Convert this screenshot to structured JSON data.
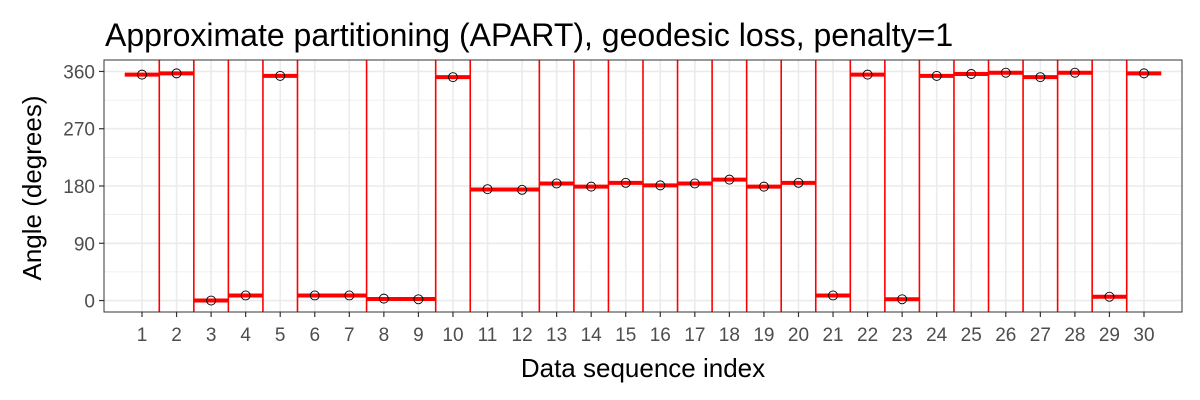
{
  "chart_data": {
    "type": "scatter",
    "title": "Approximate partitioning (APART), geodesic loss, penalty=1",
    "xlabel": "Data sequence index",
    "ylabel": "Angle (degrees)",
    "x_ticks": [
      "1",
      "2",
      "3",
      "4",
      "5",
      "6",
      "7",
      "8",
      "9",
      "10",
      "11",
      "12",
      "13",
      "14",
      "15",
      "16",
      "17",
      "18",
      "19",
      "20",
      "21",
      "22",
      "23",
      "24",
      "25",
      "26",
      "27",
      "28",
      "29",
      "30"
    ],
    "y_ticks": [
      "0",
      "90",
      "180",
      "270",
      "360"
    ],
    "xlim": [
      -0.1,
      31.1
    ],
    "ylim": [
      -18,
      378
    ],
    "grid": true,
    "colors": {
      "segment": "#ff0000",
      "point": "#000000",
      "grid": "#ebebeb",
      "panel_border": "#333333"
    },
    "points": {
      "x": [
        1,
        2,
        3,
        4,
        5,
        6,
        7,
        8,
        9,
        10,
        11,
        12,
        13,
        14,
        15,
        16,
        17,
        18,
        19,
        20,
        21,
        22,
        23,
        24,
        25,
        26,
        27,
        28,
        29,
        30
      ],
      "y": [
        355,
        357,
        0,
        8,
        353,
        8,
        8,
        3,
        2,
        351,
        175,
        174,
        184,
        179,
        185,
        181,
        184,
        190,
        179,
        185,
        8,
        355,
        2,
        353,
        356,
        358,
        351,
        358,
        6,
        357
      ]
    },
    "segments": [
      {
        "start": 0.5,
        "end": 1.5,
        "value": 355
      },
      {
        "start": 1.5,
        "end": 2.5,
        "value": 357
      },
      {
        "start": 2.5,
        "end": 3.5,
        "value": 0
      },
      {
        "start": 3.5,
        "end": 4.5,
        "value": 8
      },
      {
        "start": 4.5,
        "end": 5.5,
        "value": 353
      },
      {
        "start": 5.5,
        "end": 7.5,
        "value": 8
      },
      {
        "start": 7.5,
        "end": 9.5,
        "value": 2.5
      },
      {
        "start": 9.5,
        "end": 10.5,
        "value": 351
      },
      {
        "start": 10.5,
        "end": 12.5,
        "value": 174.5
      },
      {
        "start": 12.5,
        "end": 13.5,
        "value": 184
      },
      {
        "start": 13.5,
        "end": 14.5,
        "value": 179
      },
      {
        "start": 14.5,
        "end": 15.5,
        "value": 185
      },
      {
        "start": 15.5,
        "end": 16.5,
        "value": 181
      },
      {
        "start": 16.5,
        "end": 17.5,
        "value": 184
      },
      {
        "start": 17.5,
        "end": 18.5,
        "value": 190
      },
      {
        "start": 18.5,
        "end": 19.5,
        "value": 179
      },
      {
        "start": 19.5,
        "end": 20.5,
        "value": 185
      },
      {
        "start": 20.5,
        "end": 21.5,
        "value": 8
      },
      {
        "start": 21.5,
        "end": 22.5,
        "value": 355
      },
      {
        "start": 22.5,
        "end": 23.5,
        "value": 2
      },
      {
        "start": 23.5,
        "end": 24.5,
        "value": 353
      },
      {
        "start": 24.5,
        "end": 25.5,
        "value": 356
      },
      {
        "start": 25.5,
        "end": 26.5,
        "value": 358
      },
      {
        "start": 26.5,
        "end": 27.5,
        "value": 351
      },
      {
        "start": 27.5,
        "end": 28.5,
        "value": 358
      },
      {
        "start": 28.5,
        "end": 29.5,
        "value": 6
      },
      {
        "start": 29.5,
        "end": 30.5,
        "value": 357
      }
    ],
    "changepoints": [
      1.5,
      2.5,
      3.5,
      4.5,
      5.5,
      7.5,
      9.5,
      10.5,
      12.5,
      13.5,
      14.5,
      15.5,
      16.5,
      17.5,
      18.5,
      19.5,
      20.5,
      21.5,
      22.5,
      23.5,
      24.5,
      25.5,
      26.5,
      27.5,
      28.5,
      29.5
    ]
  }
}
